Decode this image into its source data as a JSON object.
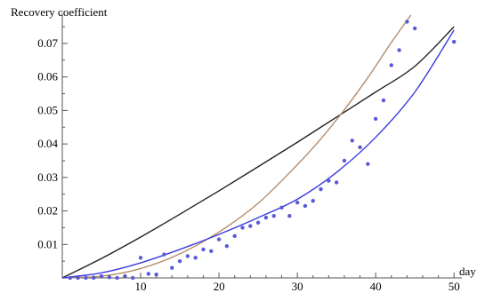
{
  "chart_data": {
    "type": "scatter",
    "title": "",
    "xlabel": "day",
    "ylabel": "Recovery coefficient",
    "xlim": [
      0,
      51
    ],
    "ylim": [
      0,
      0.079
    ],
    "xticks": [
      10,
      20,
      30,
      40,
      50
    ],
    "xtick_labels": [
      "10",
      "20",
      "30",
      "40",
      "50"
    ],
    "yticks": [
      0.01,
      0.02,
      0.03,
      0.04,
      0.05,
      0.06,
      0.07
    ],
    "ytick_labels": [
      "0.01",
      "0.02",
      "0.03",
      "0.04",
      "0.05",
      "0.06",
      "0.07"
    ],
    "grid": false,
    "legend": "none",
    "points": {
      "color": "#5a5ad6",
      "x": [
        1,
        2,
        3,
        4,
        5,
        6,
        7,
        8,
        9,
        10,
        11,
        12,
        13,
        14,
        15,
        16,
        17,
        18,
        19,
        20,
        21,
        22,
        23,
        24,
        25,
        26,
        27,
        28,
        29,
        30,
        31,
        32,
        33,
        34,
        35,
        36,
        37,
        38,
        39,
        40,
        41,
        42,
        43,
        44,
        45,
        50
      ],
      "y": [
        0.0,
        0.0,
        0.0,
        0.0,
        0.0005,
        0.0002,
        0.0,
        0.0005,
        0.0,
        0.006,
        0.0012,
        0.001,
        0.007,
        0.003,
        0.005,
        0.0065,
        0.006,
        0.0085,
        0.008,
        0.0115,
        0.0095,
        0.0125,
        0.015,
        0.0155,
        0.0165,
        0.018,
        0.0185,
        0.021,
        0.0185,
        0.0225,
        0.0215,
        0.023,
        0.0265,
        0.029,
        0.0285,
        0.035,
        0.041,
        0.039,
        0.034,
        0.0475,
        0.053,
        0.0635,
        0.068,
        0.0765,
        0.0745,
        0.0705
      ]
    },
    "series": [
      {
        "color": "#222222",
        "x": [
          0,
          5,
          10,
          15,
          20,
          25,
          30,
          35,
          40,
          45,
          50
        ],
        "y": [
          0,
          0.0058,
          0.0122,
          0.019,
          0.026,
          0.0332,
          0.0405,
          0.048,
          0.0555,
          0.0632,
          0.075
        ]
      },
      {
        "color": "#b38c6a",
        "x": [
          0,
          5,
          10,
          15,
          20,
          25,
          30,
          33,
          36,
          39,
          42,
          44.5
        ],
        "y": [
          0,
          0.0005,
          0.0028,
          0.0072,
          0.0137,
          0.0223,
          0.0338,
          0.0415,
          0.0502,
          0.0598,
          0.0703,
          0.0785
        ]
      },
      {
        "color": "#3a3ae0",
        "x": [
          0,
          5,
          10,
          15,
          20,
          25,
          30,
          35,
          40,
          45,
          50
        ],
        "y": [
          0,
          0.0015,
          0.0045,
          0.0085,
          0.013,
          0.018,
          0.0235,
          0.0315,
          0.042,
          0.0555,
          0.074
        ]
      }
    ]
  }
}
